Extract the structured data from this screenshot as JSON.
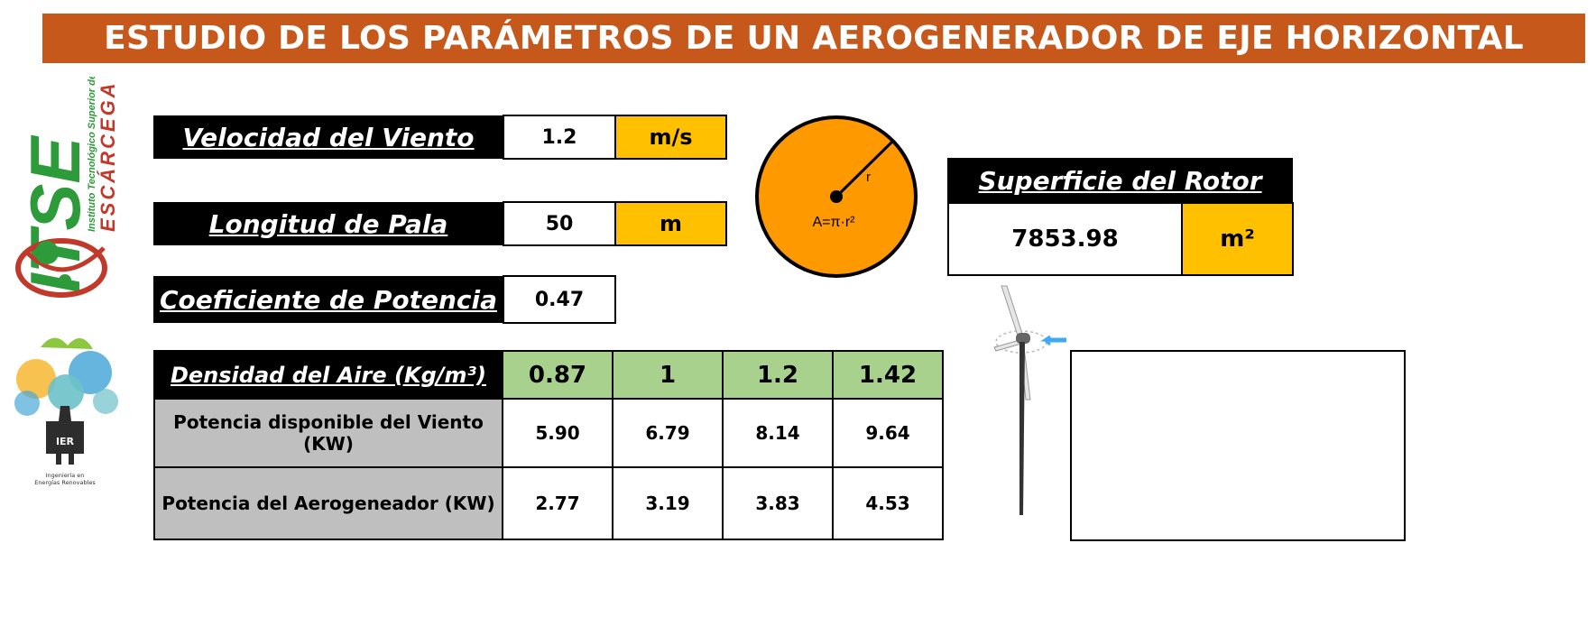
{
  "title": "ESTUDIO DE LOS PARÁMETROS DE UN AEROGENERADOR DE EJE HORIZONTAL",
  "inputs": {
    "wind_speed": {
      "label": "Velocidad del Viento",
      "value": "1.2",
      "unit": "m/s"
    },
    "blade_length": {
      "label": "Longitud de Pala",
      "value": "50",
      "unit": "m"
    },
    "power_coef": {
      "label": "Coeficiente de Potencia",
      "value": "0.47"
    }
  },
  "circle": {
    "radius_label": "r",
    "formula": "A=π·r²"
  },
  "rotor": {
    "label": "Superficie del Rotor",
    "value": "7853.98",
    "unit": "m²"
  },
  "table": {
    "header_label": "Densidad del Aire (Kg/m³)",
    "densities": [
      "0.87",
      "1",
      "1.2",
      "1.42"
    ],
    "rows": [
      {
        "label": "Potencia disponible del Viento (KW)",
        "values": [
          "5.90",
          "6.79",
          "8.14",
          "9.64"
        ]
      },
      {
        "label": "Potencia del Aerogeneador (KW)",
        "values": [
          "2.77",
          "3.19",
          "3.83",
          "4.53"
        ]
      }
    ]
  },
  "logos": {
    "itse": {
      "main": "ITSE",
      "sub": "Instituto Tecnológico Superior de",
      "city": "ESCÁRCEGA"
    },
    "ier": {
      "abbr": "IER",
      "line1": "Ingeniería en",
      "line2": "Energías Renovables"
    }
  },
  "colors": {
    "banner": "#c5581a",
    "unit": "#ffc000",
    "density": "#a9d18e",
    "row_label": "#bfbfbf",
    "circle": "#ff9900"
  }
}
